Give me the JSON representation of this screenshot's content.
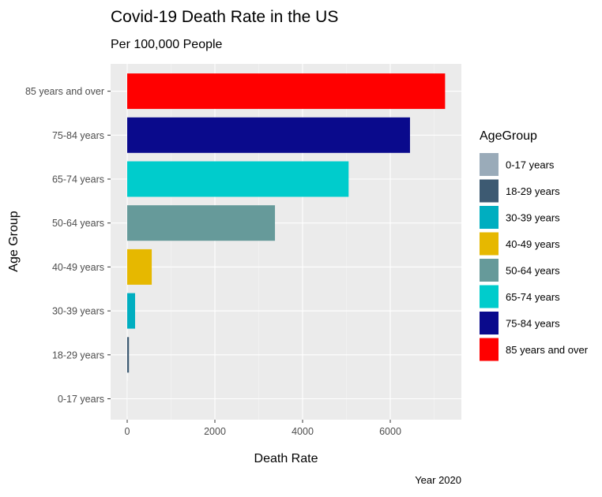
{
  "chart_data": {
    "type": "bar",
    "orientation": "horizontal",
    "title": "Covid-19 Death Rate in the US",
    "subtitle": "Per 100,000 People",
    "xlabel": "Death Rate",
    "ylabel": "Age Group",
    "caption": "Year 2020",
    "xlim": [
      0,
      7500
    ],
    "xticks": [
      0,
      2000,
      4000,
      6000
    ],
    "grid": true,
    "legend_title": "AgeGroup",
    "legend_position": "right",
    "categories": [
      "0-17 years",
      "18-29 years",
      "30-39 years",
      "40-49 years",
      "50-64 years",
      "65-74 years",
      "75-84 years",
      "85 years and over"
    ],
    "values": [
      1,
      40,
      180,
      560,
      3370,
      5050,
      6450,
      7250
    ],
    "colors": [
      "#9aabb9",
      "#3d5a72",
      "#00aec0",
      "#e6b800",
      "#669a9a",
      "#00cccc",
      "#0a0a8c",
      "#ff0000"
    ]
  }
}
